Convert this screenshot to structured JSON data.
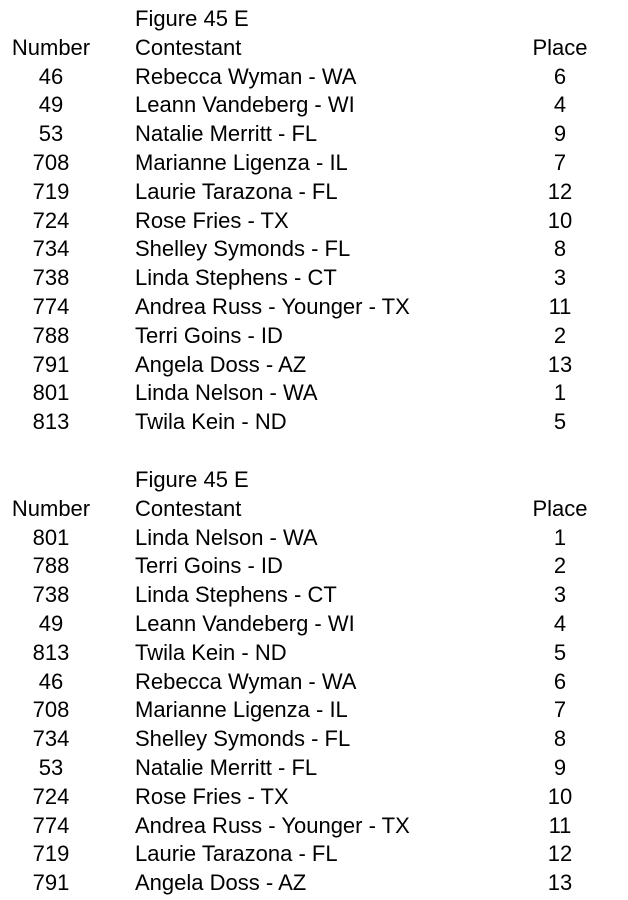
{
  "tables": [
    {
      "title": "Figure 45 E",
      "headers": {
        "number": "Number",
        "contestant": "Contestant",
        "place": "Place"
      },
      "rows": [
        {
          "number": "46",
          "contestant": "Rebecca Wyman - WA",
          "place": "6"
        },
        {
          "number": "49",
          "contestant": "Leann Vandeberg - WI",
          "place": "4"
        },
        {
          "number": "53",
          "contestant": "Natalie Merritt - FL",
          "place": "9"
        },
        {
          "number": "708",
          "contestant": "Marianne Ligenza - IL",
          "place": "7"
        },
        {
          "number": "719",
          "contestant": "Laurie Tarazona - FL",
          "place": "12"
        },
        {
          "number": "724",
          "contestant": "Rose Fries - TX",
          "place": "10"
        },
        {
          "number": "734",
          "contestant": "Shelley Symonds - FL",
          "place": "8"
        },
        {
          "number": "738",
          "contestant": "Linda Stephens - CT",
          "place": "3"
        },
        {
          "number": "774",
          "contestant": "Andrea Russ - Younger - TX",
          "place": "11"
        },
        {
          "number": "788",
          "contestant": "Terri Goins - ID",
          "place": "2"
        },
        {
          "number": "791",
          "contestant": "Angela Doss - AZ",
          "place": "13"
        },
        {
          "number": "801",
          "contestant": "Linda Nelson - WA",
          "place": "1"
        },
        {
          "number": "813",
          "contestant": "Twila Kein - ND",
          "place": "5"
        }
      ]
    },
    {
      "title": "Figure 45 E",
      "headers": {
        "number": "Number",
        "contestant": "Contestant",
        "place": "Place"
      },
      "rows": [
        {
          "number": "801",
          "contestant": "Linda Nelson - WA",
          "place": "1"
        },
        {
          "number": "788",
          "contestant": "Terri Goins - ID",
          "place": "2"
        },
        {
          "number": "738",
          "contestant": "Linda Stephens - CT",
          "place": "3"
        },
        {
          "number": "49",
          "contestant": "Leann Vandeberg - WI",
          "place": "4"
        },
        {
          "number": "813",
          "contestant": "Twila Kein - ND",
          "place": "5"
        },
        {
          "number": "46",
          "contestant": "Rebecca Wyman - WA",
          "place": "6"
        },
        {
          "number": "708",
          "contestant": "Marianne Ligenza - IL",
          "place": "7"
        },
        {
          "number": "734",
          "contestant": "Shelley Symonds - FL",
          "place": "8"
        },
        {
          "number": "53",
          "contestant": "Natalie Merritt - FL",
          "place": "9"
        },
        {
          "number": "724",
          "contestant": "Rose Fries - TX",
          "place": "10"
        },
        {
          "number": "774",
          "contestant": "Andrea Russ - Younger - TX",
          "place": "11"
        },
        {
          "number": "719",
          "contestant": "Laurie Tarazona - FL",
          "place": "12"
        },
        {
          "number": "791",
          "contestant": "Angela Doss - AZ",
          "place": "13"
        }
      ]
    }
  ]
}
